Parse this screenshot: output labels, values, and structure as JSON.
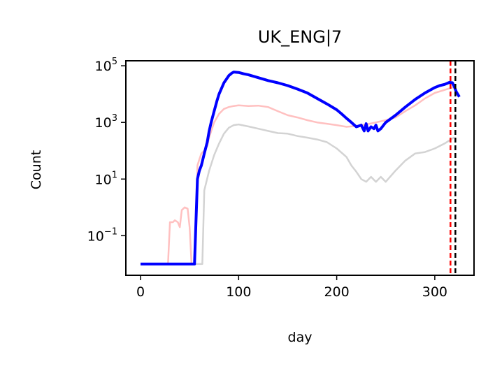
{
  "chart_data": {
    "type": "line",
    "title": "UK_ENG|7",
    "xlabel": "day",
    "ylabel": "Count",
    "yscale": "log",
    "xlim": [
      -15,
      340
    ],
    "ylim": [
      0.004,
      150000
    ],
    "xticks": [
      0,
      100,
      200,
      300
    ],
    "yticks": [
      {
        "value": 0.1,
        "base": "10",
        "exp": "−1"
      },
      {
        "value": 10,
        "base": "10",
        "exp": "1"
      },
      {
        "value": 1000,
        "base": "10",
        "exp": "3"
      },
      {
        "value": 100000,
        "base": "10",
        "exp": "5"
      }
    ],
    "grid": false,
    "vlines": [
      {
        "x": 316,
        "color": "#ff0000",
        "style": "dashed"
      },
      {
        "x": 321,
        "color": "#000000",
        "style": "dashed"
      }
    ],
    "series": [
      {
        "color": "#d3d3d3",
        "style": "gray",
        "x": [
          0,
          30,
          55,
          63,
          65,
          70,
          75,
          80,
          85,
          90,
          95,
          100,
          110,
          120,
          130,
          140,
          150,
          160,
          170,
          180,
          190,
          200,
          210,
          215,
          220,
          225,
          230,
          235,
          240,
          245,
          250,
          260,
          270,
          280,
          290,
          300,
          310,
          320
        ],
        "y": [
          0.01,
          0.01,
          0.01,
          0.01,
          4,
          20,
          70,
          180,
          400,
          650,
          800,
          850,
          720,
          600,
          500,
          420,
          400,
          330,
          290,
          250,
          200,
          120,
          60,
          30,
          18,
          10,
          8,
          12,
          8,
          12,
          8,
          20,
          45,
          80,
          90,
          120,
          180,
          300
        ]
      },
      {
        "color": "#ffc0c0",
        "style": "pink",
        "x": [
          0,
          25,
          28,
          30,
          33,
          35,
          38,
          40,
          42,
          45,
          48,
          50,
          52,
          55,
          57,
          58,
          60,
          62,
          65,
          68,
          70,
          75,
          80,
          85,
          90,
          95,
          100,
          110,
          120,
          130,
          140,
          150,
          160,
          170,
          180,
          190,
          200,
          210,
          220,
          230,
          240,
          250,
          260,
          270,
          280,
          290,
          300,
          310,
          320
        ],
        "y": [
          0.01,
          0.01,
          0.01,
          0.3,
          0.3,
          0.35,
          0.3,
          0.2,
          0.8,
          1.0,
          0.9,
          0.2,
          0.01,
          0.01,
          0.5,
          30,
          50,
          80,
          100,
          150,
          300,
          1000,
          2000,
          3000,
          3500,
          3800,
          4000,
          3800,
          3900,
          3500,
          2500,
          1800,
          1500,
          1200,
          1000,
          900,
          800,
          700,
          750,
          850,
          1000,
          1200,
          1500,
          2500,
          4000,
          7000,
          11000,
          14000,
          18000
        ]
      },
      {
        "color": "#0000ff",
        "style": "blue",
        "x": [
          0,
          20,
          40,
          55,
          57,
          58,
          60,
          62,
          65,
          68,
          70,
          72,
          75,
          78,
          80,
          85,
          90,
          93,
          95,
          100,
          105,
          110,
          120,
          130,
          140,
          150,
          160,
          170,
          180,
          190,
          200,
          205,
          210,
          215,
          220,
          225,
          228,
          230,
          232,
          235,
          238,
          240,
          242,
          245,
          250,
          260,
          270,
          280,
          290,
          300,
          305,
          310,
          315,
          318,
          320,
          322,
          325
        ],
        "y": [
          0.01,
          0.01,
          0.01,
          0.01,
          1,
          10,
          20,
          30,
          80,
          200,
          500,
          1000,
          2500,
          6000,
          10000,
          25000,
          45000,
          55000,
          60000,
          58000,
          52000,
          48000,
          38000,
          30000,
          25000,
          20000,
          15000,
          11000,
          7000,
          4500,
          2800,
          2000,
          1400,
          1000,
          700,
          800,
          500,
          900,
          500,
          700,
          600,
          800,
          500,
          600,
          1000,
          1800,
          3500,
          6500,
          11000,
          17000,
          20000,
          22000,
          26000,
          25000,
          18000,
          12000,
          8000
        ]
      }
    ]
  }
}
